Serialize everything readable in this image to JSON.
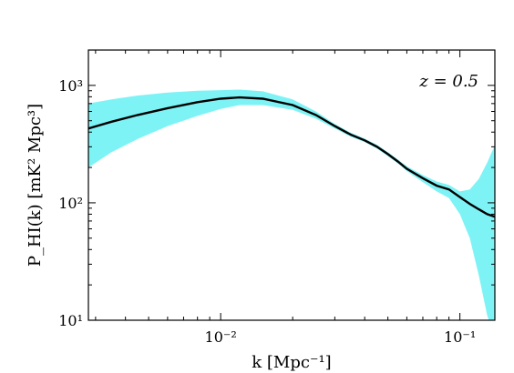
{
  "chart_data": {
    "type": "line",
    "title": "",
    "annotation": {
      "text": "z = 0.5",
      "position": "top-right"
    },
    "xlabel": "k [Mpc⁻¹]",
    "ylabel": "P_HI(k) [mK² Mpc³]",
    "x_scale": "log",
    "y_scale": "log",
    "xlim": [
      0.0028,
      0.14
    ],
    "ylim": [
      10,
      2000
    ],
    "x_major_ticks": [
      {
        "value": 0.01,
        "label": "10⁻²"
      },
      {
        "value": 0.1,
        "label": "10⁻¹"
      }
    ],
    "y_major_ticks": [
      {
        "value": 10,
        "label": "10¹"
      },
      {
        "value": 100,
        "label": "10²"
      },
      {
        "value": 1000,
        "label": "10³"
      }
    ],
    "grid": false,
    "colors": {
      "band": "#7ef3f6",
      "line": "#000000"
    },
    "series": [
      {
        "type": "line",
        "x": [
          0.0028,
          0.0035,
          0.0045,
          0.006,
          0.008,
          0.01,
          0.012,
          0.015,
          0.02,
          0.025,
          0.03,
          0.035,
          0.04,
          0.045,
          0.05,
          0.055,
          0.06,
          0.07,
          0.08,
          0.09,
          0.1,
          0.11,
          0.12,
          0.13,
          0.14
        ],
        "y": [
          430,
          490,
          560,
          640,
          720,
          770,
          790,
          770,
          680,
          560,
          450,
          380,
          340,
          300,
          260,
          225,
          195,
          162,
          140,
          130,
          112,
          98,
          88,
          80,
          76
        ]
      },
      {
        "type": "band",
        "x": [
          0.0028,
          0.0035,
          0.0045,
          0.006,
          0.008,
          0.01,
          0.012,
          0.015,
          0.02,
          0.025,
          0.03,
          0.035,
          0.04,
          0.045,
          0.05,
          0.055,
          0.06,
          0.07,
          0.08,
          0.09,
          0.1,
          0.11,
          0.12,
          0.13,
          0.14
        ],
        "upper": [
          700,
          760,
          820,
          870,
          900,
          910,
          920,
          890,
          760,
          600,
          470,
          395,
          352,
          312,
          270,
          234,
          205,
          172,
          152,
          142,
          125,
          130,
          160,
          220,
          310
        ],
        "lower": [
          200,
          270,
          350,
          450,
          550,
          630,
          680,
          680,
          620,
          520,
          430,
          365,
          328,
          290,
          250,
          217,
          186,
          150,
          125,
          110,
          80,
          50,
          24,
          11,
          7
        ]
      }
    ]
  }
}
